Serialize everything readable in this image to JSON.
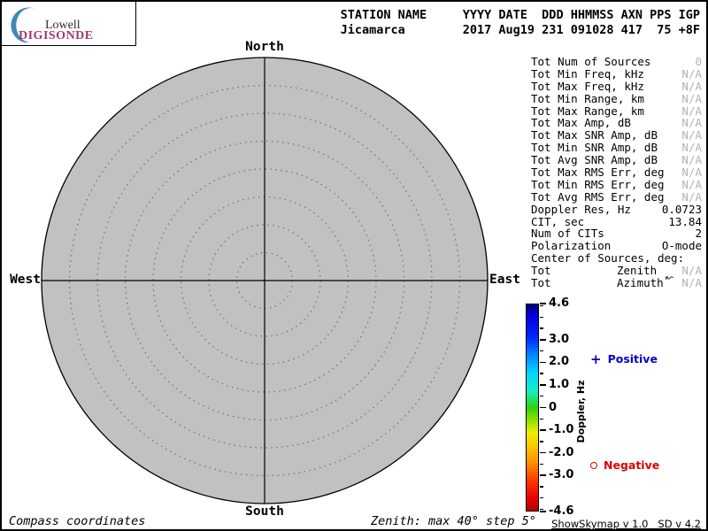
{
  "logo": {
    "line1": "Lowell",
    "line2": "DIGISONDE",
    "accent_color": "#9e3a6d",
    "crescent_color": "#4189b4"
  },
  "header": {
    "line1": "STATION NAME     YYYY DATE  DDD HHMMSS AXN PPS IGP",
    "line2": "Jicamarca        2017 Aug19 231 091028 417  75 +8F"
  },
  "compass": {
    "north": "North",
    "south": "South",
    "west": "West",
    "east": "East",
    "max_deg": 40,
    "step_deg": 5,
    "disk_color": "#c1c1c1"
  },
  "panel": {
    "rows": [
      {
        "label": "Tot Num of Sources",
        "value": "0",
        "dim": true
      },
      {
        "label": "Tot Min Freq, kHz",
        "value": "N/A",
        "dim": true
      },
      {
        "label": "Tot Max Freq, kHz",
        "value": "N/A",
        "dim": true
      },
      {
        "label": "Tot Min Range, km",
        "value": "N/A",
        "dim": true
      },
      {
        "label": "Tot Max Range, km",
        "value": "N/A",
        "dim": true
      },
      {
        "label": "Tot Max Amp, dB",
        "value": "N/A",
        "dim": true
      },
      {
        "label": "Tot Max SNR Amp, dB",
        "value": "N/A",
        "dim": true
      },
      {
        "label": "Tot Min SNR Amp, dB",
        "value": "N/A",
        "dim": true
      },
      {
        "label": "Tot Avg SNR Amp, dB",
        "value": "N/A",
        "dim": true
      },
      {
        "label": "Tot Max RMS Err, deg",
        "value": "N/A",
        "dim": true
      },
      {
        "label": "Tot Min RMS Err, deg",
        "value": "N/A",
        "dim": true
      },
      {
        "label": "Tot Avg RMS Err, deg",
        "value": "N/A",
        "dim": true
      },
      {
        "label": "Doppler Res, Hz",
        "value": "0.0723",
        "dim": false
      },
      {
        "label": "CIT, sec",
        "value": "13.84",
        "dim": false
      },
      {
        "label": "Num of CITs",
        "value": "2",
        "dim": false
      },
      {
        "label": "Polarization",
        "value": "O-mode",
        "dim": false
      },
      {
        "label": "Center of Sources, deg:",
        "value": "",
        "dim": false
      },
      {
        "label": "Tot",
        "mid": "Zenith",
        "value": "N/A",
        "dim": true
      },
      {
        "label": "Tot",
        "mid": "Azimuth",
        "value": "N/A",
        "dim": true
      }
    ]
  },
  "colorbar": {
    "title": "Doppler, Hz",
    "max": 4.6,
    "min": -4.6,
    "major_ticks": [
      {
        "v": 4.6,
        "label": "4.6"
      },
      {
        "v": 3.0,
        "label": "3.0"
      },
      {
        "v": 2.0,
        "label": "2.0"
      },
      {
        "v": 1.0,
        "label": "1.0"
      },
      {
        "v": 0,
        "label": "0"
      },
      {
        "v": -1.0,
        "label": "-1.0"
      },
      {
        "v": -2.0,
        "label": "-2.0"
      },
      {
        "v": -3.0,
        "label": "-3.0"
      },
      {
        "v": -4.6,
        "label": "-4.6"
      }
    ],
    "minor_ticks": [
      4.5,
      4.0,
      3.5,
      2.5,
      1.5,
      0.5,
      -0.5,
      -1.5,
      -2.5,
      -3.5,
      -4.0,
      -4.5
    ]
  },
  "legend": {
    "positive": {
      "symbol": "+",
      "label": "Positive",
      "color": "#0000cc"
    },
    "negative": {
      "symbol": "o",
      "label": "Negative",
      "color": "#dd0000"
    }
  },
  "footer": {
    "coordinates_label": "Compass coordinates",
    "zenith_note": "Zenith: max 40°  step 5°",
    "version": "ShowSkymap v 1.0   SD v 4.2"
  },
  "cursor_glyph": "↜",
  "chart_data": {
    "type": "scatter",
    "projection": "polar-skymap",
    "title": "DIGISONDE skymap - Jicamarca 2017 Aug19 231 091028",
    "num_sources": 0,
    "points": [],
    "zenith_max_deg": 40,
    "zenith_step_deg": 5,
    "rings": [
      5,
      10,
      15,
      20,
      25,
      30,
      35,
      40
    ],
    "compass_labels": [
      "North",
      "East",
      "South",
      "West"
    ],
    "coordinate_note": "Compass coordinates",
    "colorbar": {
      "label": "Doppler, Hz",
      "range": [
        -4.6,
        4.6
      ],
      "labeled_ticks": [
        4.6,
        3.0,
        2.0,
        1.0,
        0,
        -1.0,
        -2.0,
        -3.0,
        -4.6
      ],
      "colormap": "jet-like: blue (positive) to red (negative)"
    },
    "legend": [
      {
        "marker": "+",
        "meaning": "Positive",
        "color": "blue"
      },
      {
        "marker": "o",
        "meaning": "Negative",
        "color": "red"
      }
    ]
  }
}
